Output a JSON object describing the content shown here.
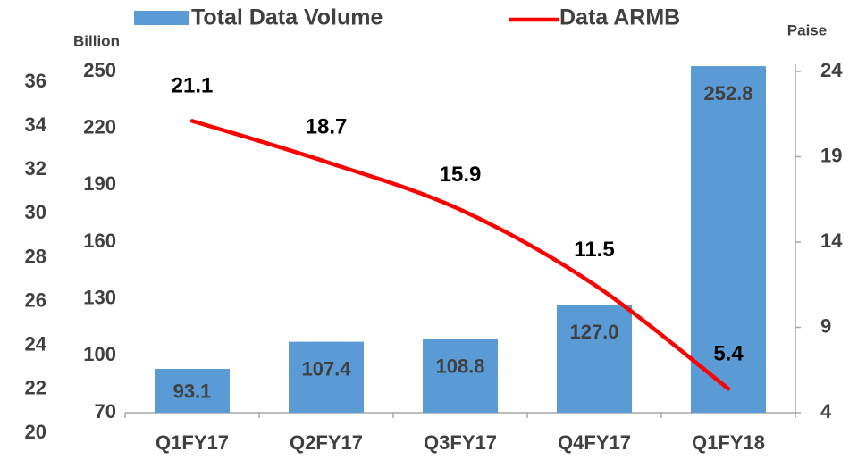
{
  "chart_data": {
    "type": "bar-line",
    "categories": [
      "Q1FY17",
      "Q2FY17",
      "Q3FY17",
      "Q4FY17",
      "Q1FY18"
    ],
    "series": [
      {
        "name": "Total Data Volume",
        "type": "bar",
        "color": "#5b9bd5",
        "values": [
          93.1,
          107.4,
          108.8,
          127.0,
          252.8
        ],
        "value_labels": [
          "93.1",
          "107.4",
          "108.8",
          "127.0",
          "252.8"
        ]
      },
      {
        "name": "Data ARMB",
        "type": "line",
        "axis": "y2",
        "color": "#ff0000",
        "values": [
          21.1,
          18.7,
          15.9,
          11.5,
          5.4
        ]
      }
    ],
    "ylabel": "Billion",
    "y2label": "Paise",
    "ylim": [
      70,
      250
    ],
    "yticks": [
      70,
      100,
      130,
      160,
      190,
      220,
      250
    ],
    "y2lim": [
      4,
      24
    ],
    "y2ticks": [
      4,
      9,
      14,
      19,
      24
    ],
    "y3lim": [
      20,
      36
    ],
    "y3ticks": [
      20,
      22,
      24,
      26,
      28,
      30,
      32,
      34,
      36
    ]
  }
}
